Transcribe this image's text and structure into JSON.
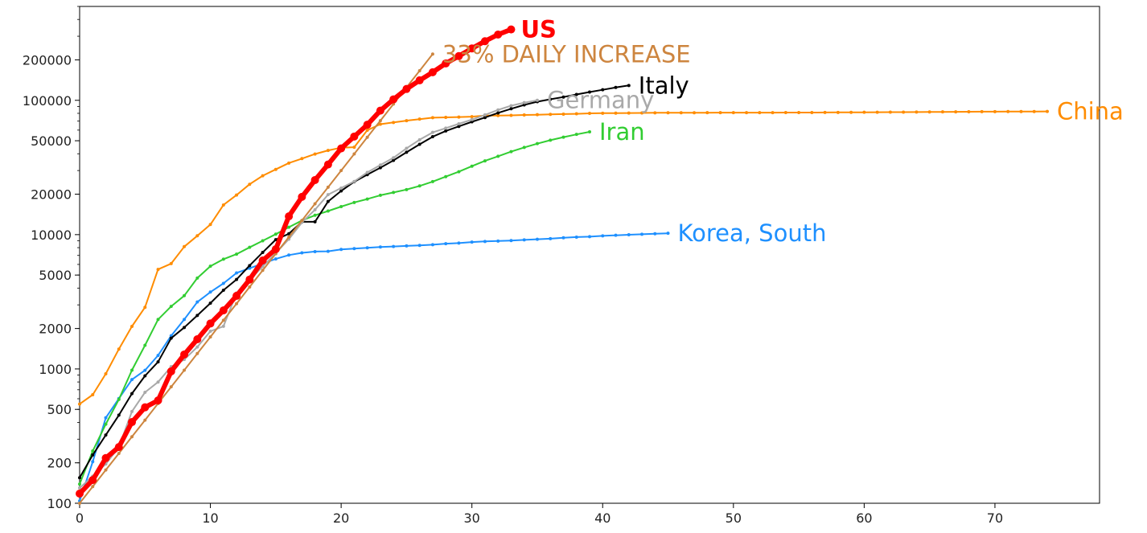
{
  "chart_data": {
    "type": "line",
    "title": "",
    "xlabel": "",
    "ylabel": "",
    "x_range": [
      0,
      78
    ],
    "y_range": [
      100,
      500000
    ],
    "y_scale": "log",
    "grid": false,
    "legend": "inline labels at series ends",
    "x_ticks": [
      "0",
      "10",
      "20",
      "30",
      "40",
      "50",
      "60",
      "70"
    ],
    "y_ticks": [
      "100",
      "200",
      "500",
      "1000",
      "2000",
      "5000",
      "10000",
      "20000",
      "50000",
      "100000",
      "200000"
    ],
    "series": [
      {
        "name": "China",
        "color": "#ff8c00",
        "label": "China",
        "x": [
          0,
          1,
          2,
          3,
          4,
          5,
          6,
          7,
          8,
          9,
          10,
          11,
          12,
          13,
          14,
          15,
          16,
          17,
          18,
          19,
          20,
          21,
          22,
          23,
          24,
          25,
          26,
          27,
          28,
          29,
          30,
          31,
          32,
          33,
          34,
          35,
          36,
          37,
          38,
          39,
          40,
          41,
          42,
          43,
          44,
          45,
          46,
          47,
          48,
          49,
          50,
          51,
          52,
          53,
          54,
          55,
          56,
          57,
          58,
          59,
          60,
          61,
          62,
          63,
          64,
          65,
          66,
          67,
          68,
          69,
          70,
          71,
          72,
          73,
          74
        ],
        "y": [
          548,
          643,
          920,
          1406,
          2075,
          2877,
          5509,
          6087,
          8141,
          9802,
          11891,
          16630,
          19716,
          23707,
          27440,
          30587,
          34110,
          36814,
          39829,
          42354,
          44386,
          44759,
          59895,
          66358,
          68413,
          70513,
          72434,
          74211,
          74619,
          75077,
          75550,
          77001,
          77022,
          77241,
          77754,
          78166,
          78600,
          78928,
          79356,
          79932,
          80136,
          80261,
          80386,
          80537,
          80690,
          80770,
          80823,
          80860,
          80887,
          80921,
          80932,
          80945,
          80977,
          81003,
          81033,
          81058,
          81102,
          81156,
          81250,
          81305,
          81435,
          81498,
          81591,
          81661,
          81782,
          81897,
          81999,
          82122,
          82198,
          82279,
          82361,
          82432,
          82511,
          82543,
          82602
        ]
      },
      {
        "name": "Korea, South",
        "color": "#1e90ff",
        "label": "Korea, South",
        "x": [
          0,
          1,
          2,
          3,
          4,
          5,
          6,
          7,
          8,
          9,
          10,
          11,
          12,
          13,
          14,
          15,
          16,
          17,
          18,
          19,
          20,
          21,
          22,
          23,
          24,
          25,
          26,
          27,
          28,
          29,
          30,
          31,
          32,
          33,
          34,
          35,
          36,
          37,
          38,
          39,
          40,
          41,
          42,
          43,
          44,
          45
        ],
        "y": [
          104,
          204,
          433,
          602,
          833,
          977,
          1261,
          1766,
          2337,
          3150,
          3736,
          4335,
          5186,
          5621,
          6088,
          6593,
          7041,
          7314,
          7478,
          7513,
          7755,
          7869,
          7979,
          8086,
          8162,
          8236,
          8320,
          8413,
          8565,
          8652,
          8799,
          8897,
          8961,
          9037,
          9137,
          9241,
          9332,
          9478,
          9583,
          9661,
          9786,
          9887,
          9976,
          10062,
          10156,
          10237
        ]
      },
      {
        "name": "Iran",
        "color": "#32cd32",
        "label": "Iran",
        "x": [
          0,
          1,
          2,
          3,
          4,
          5,
          6,
          7,
          8,
          9,
          10,
          11,
          12,
          13,
          14,
          15,
          16,
          17,
          18,
          19,
          20,
          21,
          22,
          23,
          24,
          25,
          26,
          27,
          28,
          29,
          30,
          31,
          32,
          33,
          34,
          35,
          36,
          37,
          38,
          39
        ],
        "y": [
          139,
          245,
          388,
          593,
          978,
          1501,
          2336,
          2922,
          3513,
          4747,
          5823,
          6566,
          7161,
          8042,
          9000,
          10075,
          11364,
          12729,
          13938,
          14991,
          16169,
          17361,
          18407,
          19644,
          20610,
          21638,
          23049,
          24811,
          27017,
          29406,
          32332,
          35408,
          38309,
          41495,
          44605,
          47593,
          50468,
          53183,
          55743,
          58226
        ]
      },
      {
        "name": "Italy",
        "color": "#000000",
        "label": "Italy",
        "x": [
          0,
          1,
          2,
          3,
          4,
          5,
          6,
          7,
          8,
          9,
          10,
          11,
          12,
          13,
          14,
          15,
          16,
          17,
          18,
          19,
          20,
          21,
          22,
          23,
          24,
          25,
          26,
          27,
          28,
          29,
          30,
          31,
          32,
          33,
          34,
          35,
          36,
          37,
          38,
          39,
          40,
          41,
          42
        ],
        "y": [
          155,
          229,
          322,
          453,
          655,
          888,
          1128,
          1694,
          2036,
          2502,
          3089,
          3858,
          4636,
          5883,
          7375,
          9172,
          10149,
          12462,
          12462,
          17660,
          21157,
          24747,
          27980,
          31506,
          35713,
          41035,
          47021,
          53578,
          59138,
          63927,
          69176,
          74386,
          80589,
          86498,
          92472,
          97689,
          101739,
          105792,
          110574,
          115242,
          119827,
          124632,
          128948
        ]
      },
      {
        "name": "Germany",
        "color": "#a9a9a9",
        "label": "Germany",
        "x": [
          0,
          1,
          2,
          3,
          4,
          5,
          6,
          7,
          8,
          9,
          10,
          11,
          12,
          13,
          14,
          15,
          16,
          17,
          18,
          19,
          20,
          21,
          22,
          23,
          24,
          25,
          26,
          27,
          28,
          29,
          30,
          31,
          32,
          33,
          34,
          35
        ],
        "y": [
          130,
          159,
          196,
          262,
          482,
          670,
          799,
          1040,
          1176,
          1457,
          1908,
          2078,
          3675,
          4585,
          5795,
          7272,
          9257,
          12327,
          15320,
          19848,
          22213,
          24873,
          29056,
          32986,
          37323,
          43938,
          50871,
          57695,
          62095,
          66885,
          71808,
          77872,
          84794,
          91159,
          96092,
          100123
        ]
      },
      {
        "name": "33% DAILY INCREASE",
        "color": "#cd853f",
        "label": "33% DAILY INCREASE",
        "x": [
          0,
          1,
          2,
          3,
          4,
          5,
          6,
          7,
          8,
          9,
          10,
          11,
          12,
          13,
          14,
          15,
          16,
          17,
          18,
          19,
          20,
          21,
          22,
          23,
          24,
          25,
          26,
          27
        ],
        "y": [
          100,
          133,
          177,
          235,
          313,
          416,
          553,
          736,
          979,
          1302,
          1732,
          2303,
          3063,
          4074,
          5419,
          7207,
          9585,
          12748,
          16955,
          22550,
          29992,
          39890,
          53053,
          70561,
          93846,
          124815,
          166004,
          220786
        ]
      },
      {
        "name": "US",
        "color": "#ff0000",
        "label": "US",
        "x": [
          0,
          1,
          2,
          3,
          4,
          5,
          6,
          7,
          8,
          9,
          10,
          11,
          12,
          13,
          14,
          15,
          16,
          17,
          18,
          19,
          20,
          21,
          22,
          23,
          24,
          25,
          26,
          27,
          28,
          29,
          30,
          31,
          32,
          33
        ],
        "y": [
          118,
          149,
          217,
          262,
          402,
          518,
          583,
          959,
          1281,
          1663,
          2179,
          2727,
          3499,
          4632,
          6421,
          7786,
          13680,
          19101,
          25493,
          33276,
          43847,
          53740,
          65778,
          83836,
          101657,
          121478,
          140886,
          161807,
          188172,
          213372,
          243453,
          275586,
          308850,
          337072
        ]
      }
    ]
  }
}
